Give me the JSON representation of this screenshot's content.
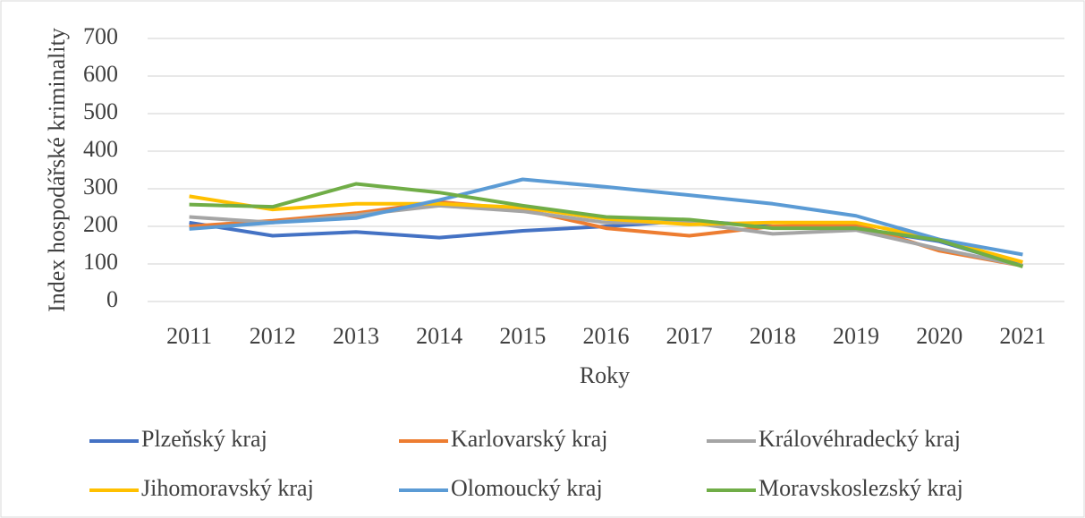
{
  "chart_data": {
    "type": "line",
    "x_label": "Roky",
    "y_label": "Index hospodářské kriminality",
    "categories": [
      "2011",
      "2012",
      "2013",
      "2014",
      "2015",
      "2016",
      "2017",
      "2018",
      "2019",
      "2020",
      "2021"
    ],
    "series": [
      {
        "name": "Plzeňský kraj",
        "color": "#4472c4",
        "values": [
          210,
          175,
          185,
          170,
          188,
          200,
          215,
          200,
          195,
          160,
          95
        ]
      },
      {
        "name": "Karlovarský kraj",
        "color": "#ed7d31",
        "values": [
          200,
          215,
          235,
          265,
          245,
          195,
          175,
          200,
          205,
          135,
          95
        ]
      },
      {
        "name": "Královéhradecký kraj",
        "color": "#a5a5a5",
        "values": [
          225,
          210,
          230,
          255,
          240,
          210,
          210,
          180,
          190,
          140,
          95
        ]
      },
      {
        "name": "Jihomoravský kraj",
        "color": "#ffc000",
        "values": [
          280,
          245,
          260,
          260,
          250,
          220,
          205,
          210,
          210,
          165,
          105
        ]
      },
      {
        "name": "Olomoucký kraj",
        "color": "#5b9bd5",
        "values": [
          193,
          210,
          222,
          270,
          325,
          305,
          283,
          260,
          228,
          165,
          125
        ]
      },
      {
        "name": "Moravskoslezský kraj",
        "color": "#70ad47",
        "values": [
          258,
          252,
          313,
          290,
          255,
          225,
          218,
          195,
          195,
          163,
          93
        ]
      }
    ],
    "ylim": [
      0,
      700
    ],
    "yticks": [
      0,
      100,
      200,
      300,
      400,
      500,
      600,
      700
    ],
    "grid": true,
    "legend": "bottom"
  }
}
